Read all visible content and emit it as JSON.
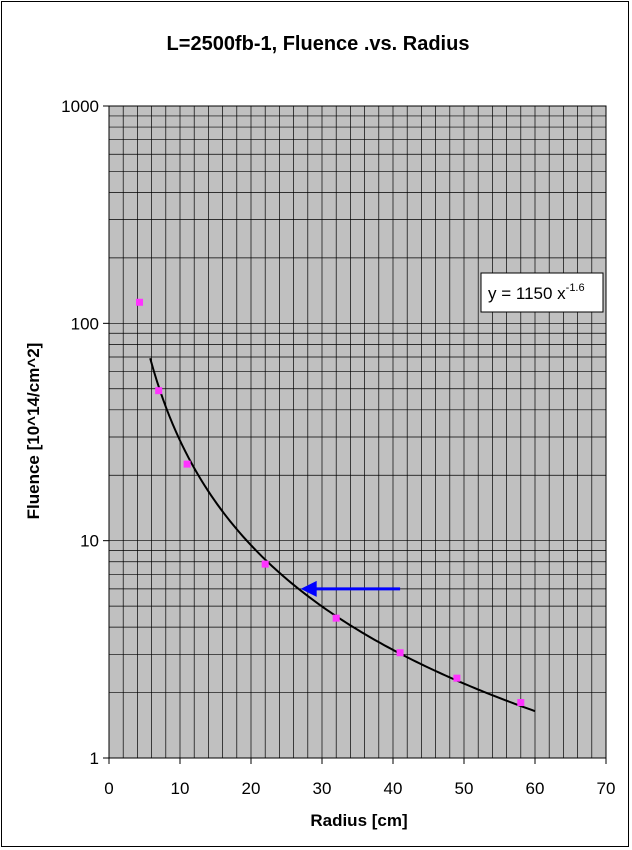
{
  "chart_data": {
    "type": "scatter",
    "title": "L=2500fb-1, Fluence .vs. Radius",
    "xlabel": "Radius  [cm]",
    "ylabel": "Fluence  [10^14/cm^2]",
    "xlim": [
      0,
      70
    ],
    "ylim": [
      1,
      1000
    ],
    "yscale": "log",
    "x_ticks": [
      "0",
      "10",
      "20",
      "30",
      "40",
      "50",
      "60",
      "70"
    ],
    "y_ticks": [
      "1",
      "10",
      "100",
      "1000"
    ],
    "grid": true,
    "legend": "none",
    "series": [
      {
        "marker": "square",
        "color": "#ff33ff",
        "points": [
          {
            "x": 4.3,
            "y": 125
          },
          {
            "x": 7,
            "y": 49
          },
          {
            "x": 11,
            "y": 22.5
          },
          {
            "x": 22,
            "y": 7.8
          },
          {
            "x": 32,
            "y": 4.4
          },
          {
            "x": 41,
            "y": 3.05
          },
          {
            "x": 49,
            "y": 2.33
          },
          {
            "x": 58,
            "y": 1.8
          }
        ]
      }
    ],
    "trendline": {
      "type": "power",
      "a": 1150,
      "b": -1.6,
      "x_range": [
        5.8,
        60
      ],
      "color": "#000000"
    },
    "annotations": {
      "equation_base": "y = 1150 x",
      "equation_exponent": "-1.6",
      "arrow": {
        "x_from": 41,
        "x_to": 27,
        "y": 6,
        "color": "#0000ff"
      }
    },
    "colors": {
      "plot_background": "#c0c0c0",
      "gridline": "#000000",
      "marker": "#ff33ff",
      "arrow": "#0000ff"
    }
  }
}
